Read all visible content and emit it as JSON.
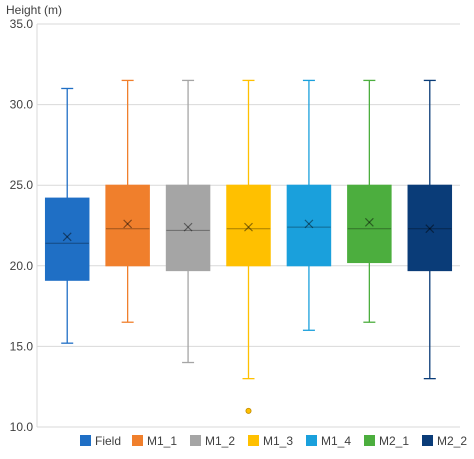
{
  "chart_data": {
    "type": "box",
    "ylabel": "Height (m)",
    "ylim": [
      10.0,
      35.0
    ],
    "yticks": [
      "10.0",
      "15.0",
      "20.0",
      "25.0",
      "30.0",
      "35.0"
    ],
    "grid": true,
    "legend_position": "bottom",
    "series": [
      {
        "name": "Field",
        "color": "#1f6fc5",
        "min": 15.2,
        "q1": 19.1,
        "median": 21.4,
        "q3": 24.2,
        "max": 31.0,
        "mean": 21.8,
        "outliers": []
      },
      {
        "name": "M1_1",
        "color": "#f07f2c",
        "min": 16.5,
        "q1": 20.0,
        "median": 22.3,
        "q3": 25.0,
        "max": 31.5,
        "mean": 22.6,
        "outliers": []
      },
      {
        "name": "M1_2",
        "color": "#a5a5a5",
        "min": 14.0,
        "q1": 19.7,
        "median": 22.2,
        "q3": 25.0,
        "max": 31.5,
        "mean": 22.4,
        "outliers": []
      },
      {
        "name": "M1_3",
        "color": "#ffc000",
        "min": 13.0,
        "q1": 20.0,
        "median": 22.3,
        "q3": 25.0,
        "max": 31.5,
        "mean": 22.4,
        "outliers": [
          11.0
        ]
      },
      {
        "name": "M1_4",
        "color": "#1aa0dc",
        "min": 16.0,
        "q1": 20.0,
        "median": 22.4,
        "q3": 25.0,
        "max": 31.5,
        "mean": 22.6,
        "outliers": []
      },
      {
        "name": "M2_1",
        "color": "#4cae3e",
        "min": 16.5,
        "q1": 20.2,
        "median": 22.3,
        "q3": 25.0,
        "max": 31.5,
        "mean": 22.7,
        "outliers": []
      },
      {
        "name": "M2_2",
        "color": "#0a3c78",
        "min": 13.0,
        "q1": 19.7,
        "median": 22.3,
        "q3": 25.0,
        "max": 31.5,
        "mean": 22.3,
        "outliers": []
      }
    ]
  }
}
